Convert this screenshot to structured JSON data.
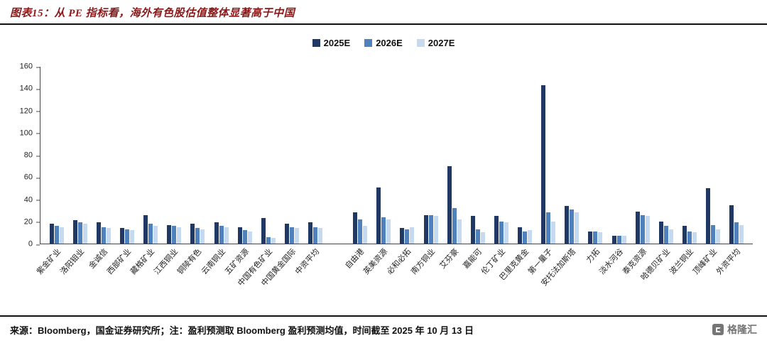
{
  "header": {
    "title": "图表15：从 PE 指标看，海外有色股估值整体显著高于中国"
  },
  "chart_data": {
    "type": "bar",
    "title": "图表15：从 PE 指标看，海外有色股估值整体显著高于中国",
    "xlabel": "",
    "ylabel": "",
    "ylim": [
      0,
      160
    ],
    "yticks": [
      0,
      20,
      40,
      60,
      80,
      100,
      120,
      140,
      160
    ],
    "grid": false,
    "legend_position": "top-center",
    "separator_after": 12,
    "categories": [
      "紫金矿业",
      "洛阳钼业",
      "金诚信",
      "西部矿业",
      "藏格矿业",
      "江西铜业",
      "铜陵有色",
      "云南铜业",
      "五矿资源",
      "中国有色矿业",
      "中国黄金国际",
      "中资平均",
      "自由港",
      "英美资源",
      "必和必拓",
      "南方铜业",
      "艾芬豪",
      "嘉能可",
      "伦丁矿业",
      "巴里克黄金",
      "第一量子",
      "安托法加斯塔",
      "力拓",
      "淡水河谷",
      "泰克资源",
      "哈德贝矿业",
      "波兰铜业",
      "顶峰矿业",
      "外资平均"
    ],
    "series": [
      {
        "name": "2025E",
        "color": "#1F3864",
        "values": [
          18,
          21,
          19,
          14,
          26,
          17,
          18,
          19,
          15,
          23,
          18,
          19,
          28,
          51,
          14,
          26,
          70,
          25,
          25,
          15,
          143,
          34,
          11,
          7,
          29,
          20,
          16,
          50,
          35
        ]
      },
      {
        "name": "2026E",
        "color": "#4F81BD",
        "values": [
          16,
          19,
          15,
          13,
          18,
          16,
          14,
          16,
          12,
          6,
          15,
          15,
          22,
          24,
          13,
          26,
          32,
          13,
          20,
          11,
          28,
          31,
          11,
          7,
          26,
          16,
          11,
          17,
          19
        ]
      },
      {
        "name": "2027E",
        "color": "#C5D9F1",
        "values": [
          15,
          18,
          14,
          12,
          16,
          15,
          13,
          15,
          11,
          5,
          14,
          14,
          16,
          22,
          15,
          25,
          22,
          10,
          19,
          12,
          20,
          28,
          10,
          7,
          25,
          13,
          10,
          13,
          17
        ]
      }
    ]
  },
  "footer": {
    "note": "来源：Bloomberg，国金证券研究所；注：盈利预测取 Bloomberg 盈利预测均值，时间截至 2025 年 10 月 13 日"
  },
  "logo": {
    "text": "格隆汇"
  }
}
